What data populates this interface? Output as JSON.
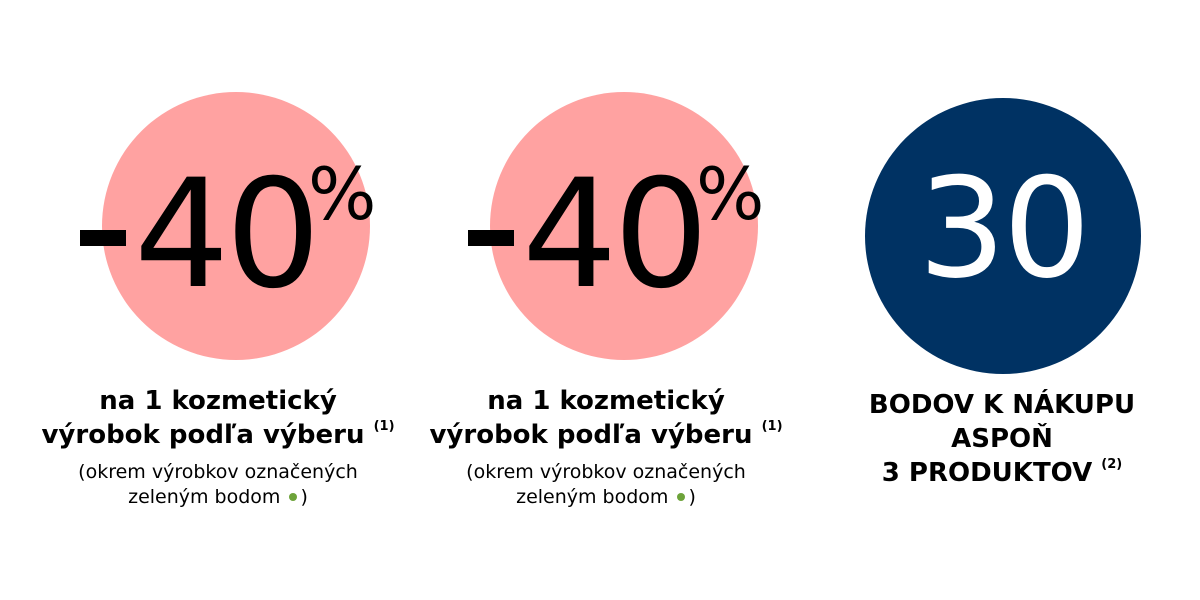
{
  "colors": {
    "pink": "#ffa2a1",
    "navy": "#003263",
    "green_dot": "#6da33a",
    "text": "#000000",
    "white": "#ffffff"
  },
  "offers": [
    {
      "value": "40",
      "minus": "-",
      "percent": "%",
      "line1": "na 1 kozmetický",
      "line2": "výrobok podľa výberu",
      "note_ref": "(1)",
      "note_line1": "(okrem výrobkov označených",
      "note_line2_a": "zeleným bodom",
      "note_line2_b": ")"
    },
    {
      "value": "40",
      "minus": "-",
      "percent": "%",
      "line1": "na 1 kozmetický",
      "line2": "výrobok podľa výberu",
      "note_ref": "(1)",
      "note_line1": "(okrem výrobkov označených",
      "note_line2_a": "zeleným bodom",
      "note_line2_b": ")"
    },
    {
      "value": "30",
      "line1": "BODOV K NÁKUPU",
      "line2": "ASPOŇ",
      "line3": "3 PRODUKTOV",
      "note_ref": "(2)"
    }
  ]
}
